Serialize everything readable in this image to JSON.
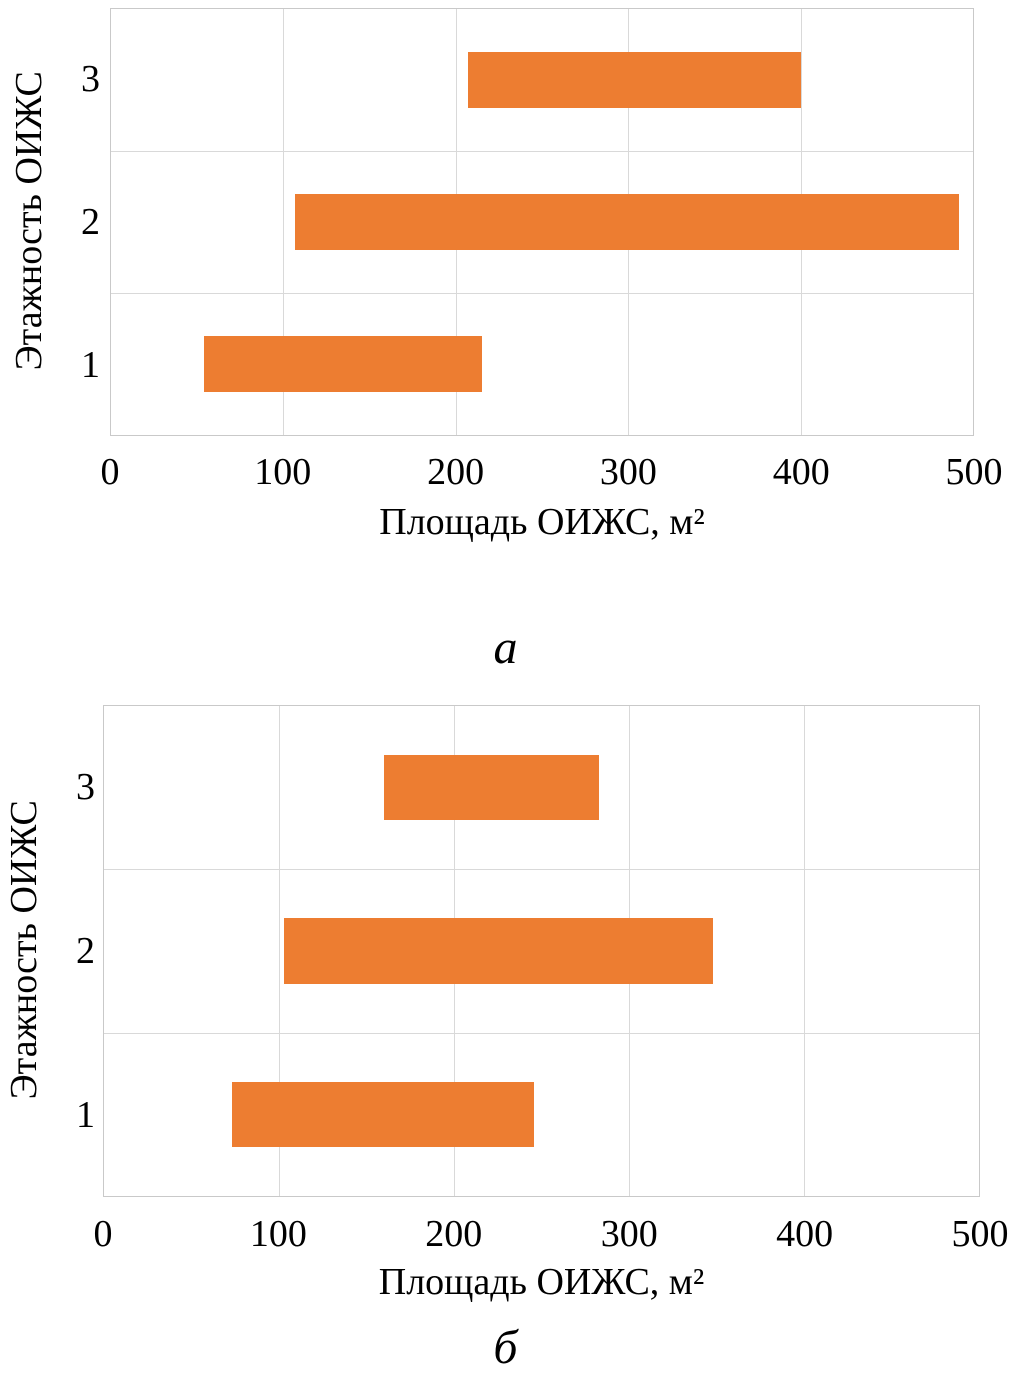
{
  "figure": {
    "background_color": "#ffffff",
    "text_color": "#000000",
    "gridline_color": "#d9d9d9"
  },
  "chart_data": [
    {
      "type": "bar",
      "subtype": "horizontal-range-bar",
      "letter": "а",
      "title": "",
      "xlabel": "Площадь ОИЖС, м²",
      "ylabel": "Этажность ОИЖС",
      "categories": [
        "3",
        "2",
        "1"
      ],
      "series": [
        {
          "name": "Площадь ОИЖС, м²",
          "ranges": [
            [
              207,
              400
            ],
            [
              107,
              492
            ],
            [
              54,
              215
            ]
          ]
        }
      ],
      "xlim": [
        0,
        500
      ],
      "xticks": [
        0,
        100,
        200,
        300,
        400,
        500
      ],
      "grid": true,
      "legend": false,
      "bar_color": "#ED7D31"
    },
    {
      "type": "bar",
      "subtype": "horizontal-range-bar",
      "letter": "б",
      "title": "",
      "xlabel": "Площадь ОИЖС, м²",
      "ylabel": "Этажность ОИЖС",
      "categories": [
        "3",
        "2",
        "1"
      ],
      "series": [
        {
          "name": "Площадь ОИЖС, м²",
          "ranges": [
            [
              160,
              283
            ],
            [
              103,
              348
            ],
            [
              73,
              246
            ]
          ]
        }
      ],
      "xlim": [
        0,
        500
      ],
      "xticks": [
        0,
        100,
        200,
        300,
        400,
        500
      ],
      "grid": true,
      "legend": false,
      "bar_color": "#ED7D31"
    }
  ]
}
